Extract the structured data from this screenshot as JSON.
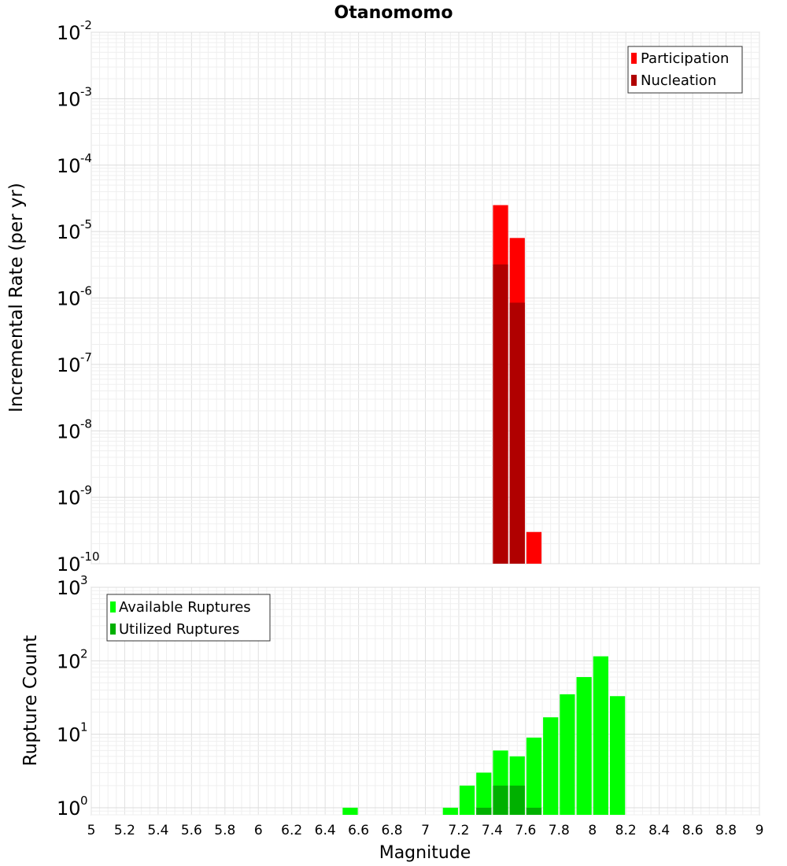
{
  "chart_data": [
    {
      "type": "bar",
      "title": "Otanomomo",
      "xlabel": "",
      "ylabel": "Incremental Rate (per yr)",
      "yscale": "log",
      "ylim": [
        1e-10,
        0.01
      ],
      "xlim": [
        5,
        9
      ],
      "bin_width": 0.1,
      "grid": true,
      "legend_position": "top-right",
      "x": [
        7.45,
        7.55,
        7.65
      ],
      "series": [
        {
          "name": "Participation",
          "color": "#ff0000",
          "values": [
            2.5e-05,
            8e-06,
            3e-10
          ]
        },
        {
          "name": "Nucleation",
          "color": "#b00000",
          "values": [
            3.2e-06,
            8.5e-07,
            null
          ]
        }
      ],
      "y_tick_exponents": [
        -10,
        -9,
        -8,
        -7,
        -6,
        -5,
        -4,
        -3,
        -2
      ]
    },
    {
      "type": "bar",
      "title": "",
      "xlabel": "Magnitude",
      "ylabel": "Rupture Count",
      "yscale": "log",
      "ylim": [
        0.8,
        1000
      ],
      "xlim": [
        5,
        9
      ],
      "bin_width": 0.1,
      "grid": true,
      "legend_position": "top-left",
      "x": [
        6.55,
        7.15,
        7.25,
        7.35,
        7.45,
        7.55,
        7.65,
        7.75,
        7.85,
        7.95,
        8.05,
        8.15
      ],
      "series": [
        {
          "name": "Available Ruptures",
          "color": "#00ff00",
          "values": [
            1,
            1,
            2,
            3,
            6,
            5,
            9,
            17,
            35,
            60,
            115,
            33
          ]
        },
        {
          "name": "Utilized Ruptures",
          "color": "#00b000",
          "values": [
            null,
            null,
            null,
            1,
            2,
            2,
            1,
            null,
            null,
            null,
            null,
            null
          ]
        }
      ],
      "y_tick_exponents": [
        0,
        1,
        2,
        3
      ]
    }
  ],
  "x_ticks": [
    "5",
    "5.2",
    "5.4",
    "5.6",
    "5.8",
    "6",
    "6.2",
    "6.4",
    "6.6",
    "6.8",
    "7",
    "7.2",
    "7.4",
    "7.6",
    "7.8",
    "8",
    "8.2",
    "8.4",
    "8.6",
    "8.8",
    "9"
  ],
  "y_tick_base": "10"
}
